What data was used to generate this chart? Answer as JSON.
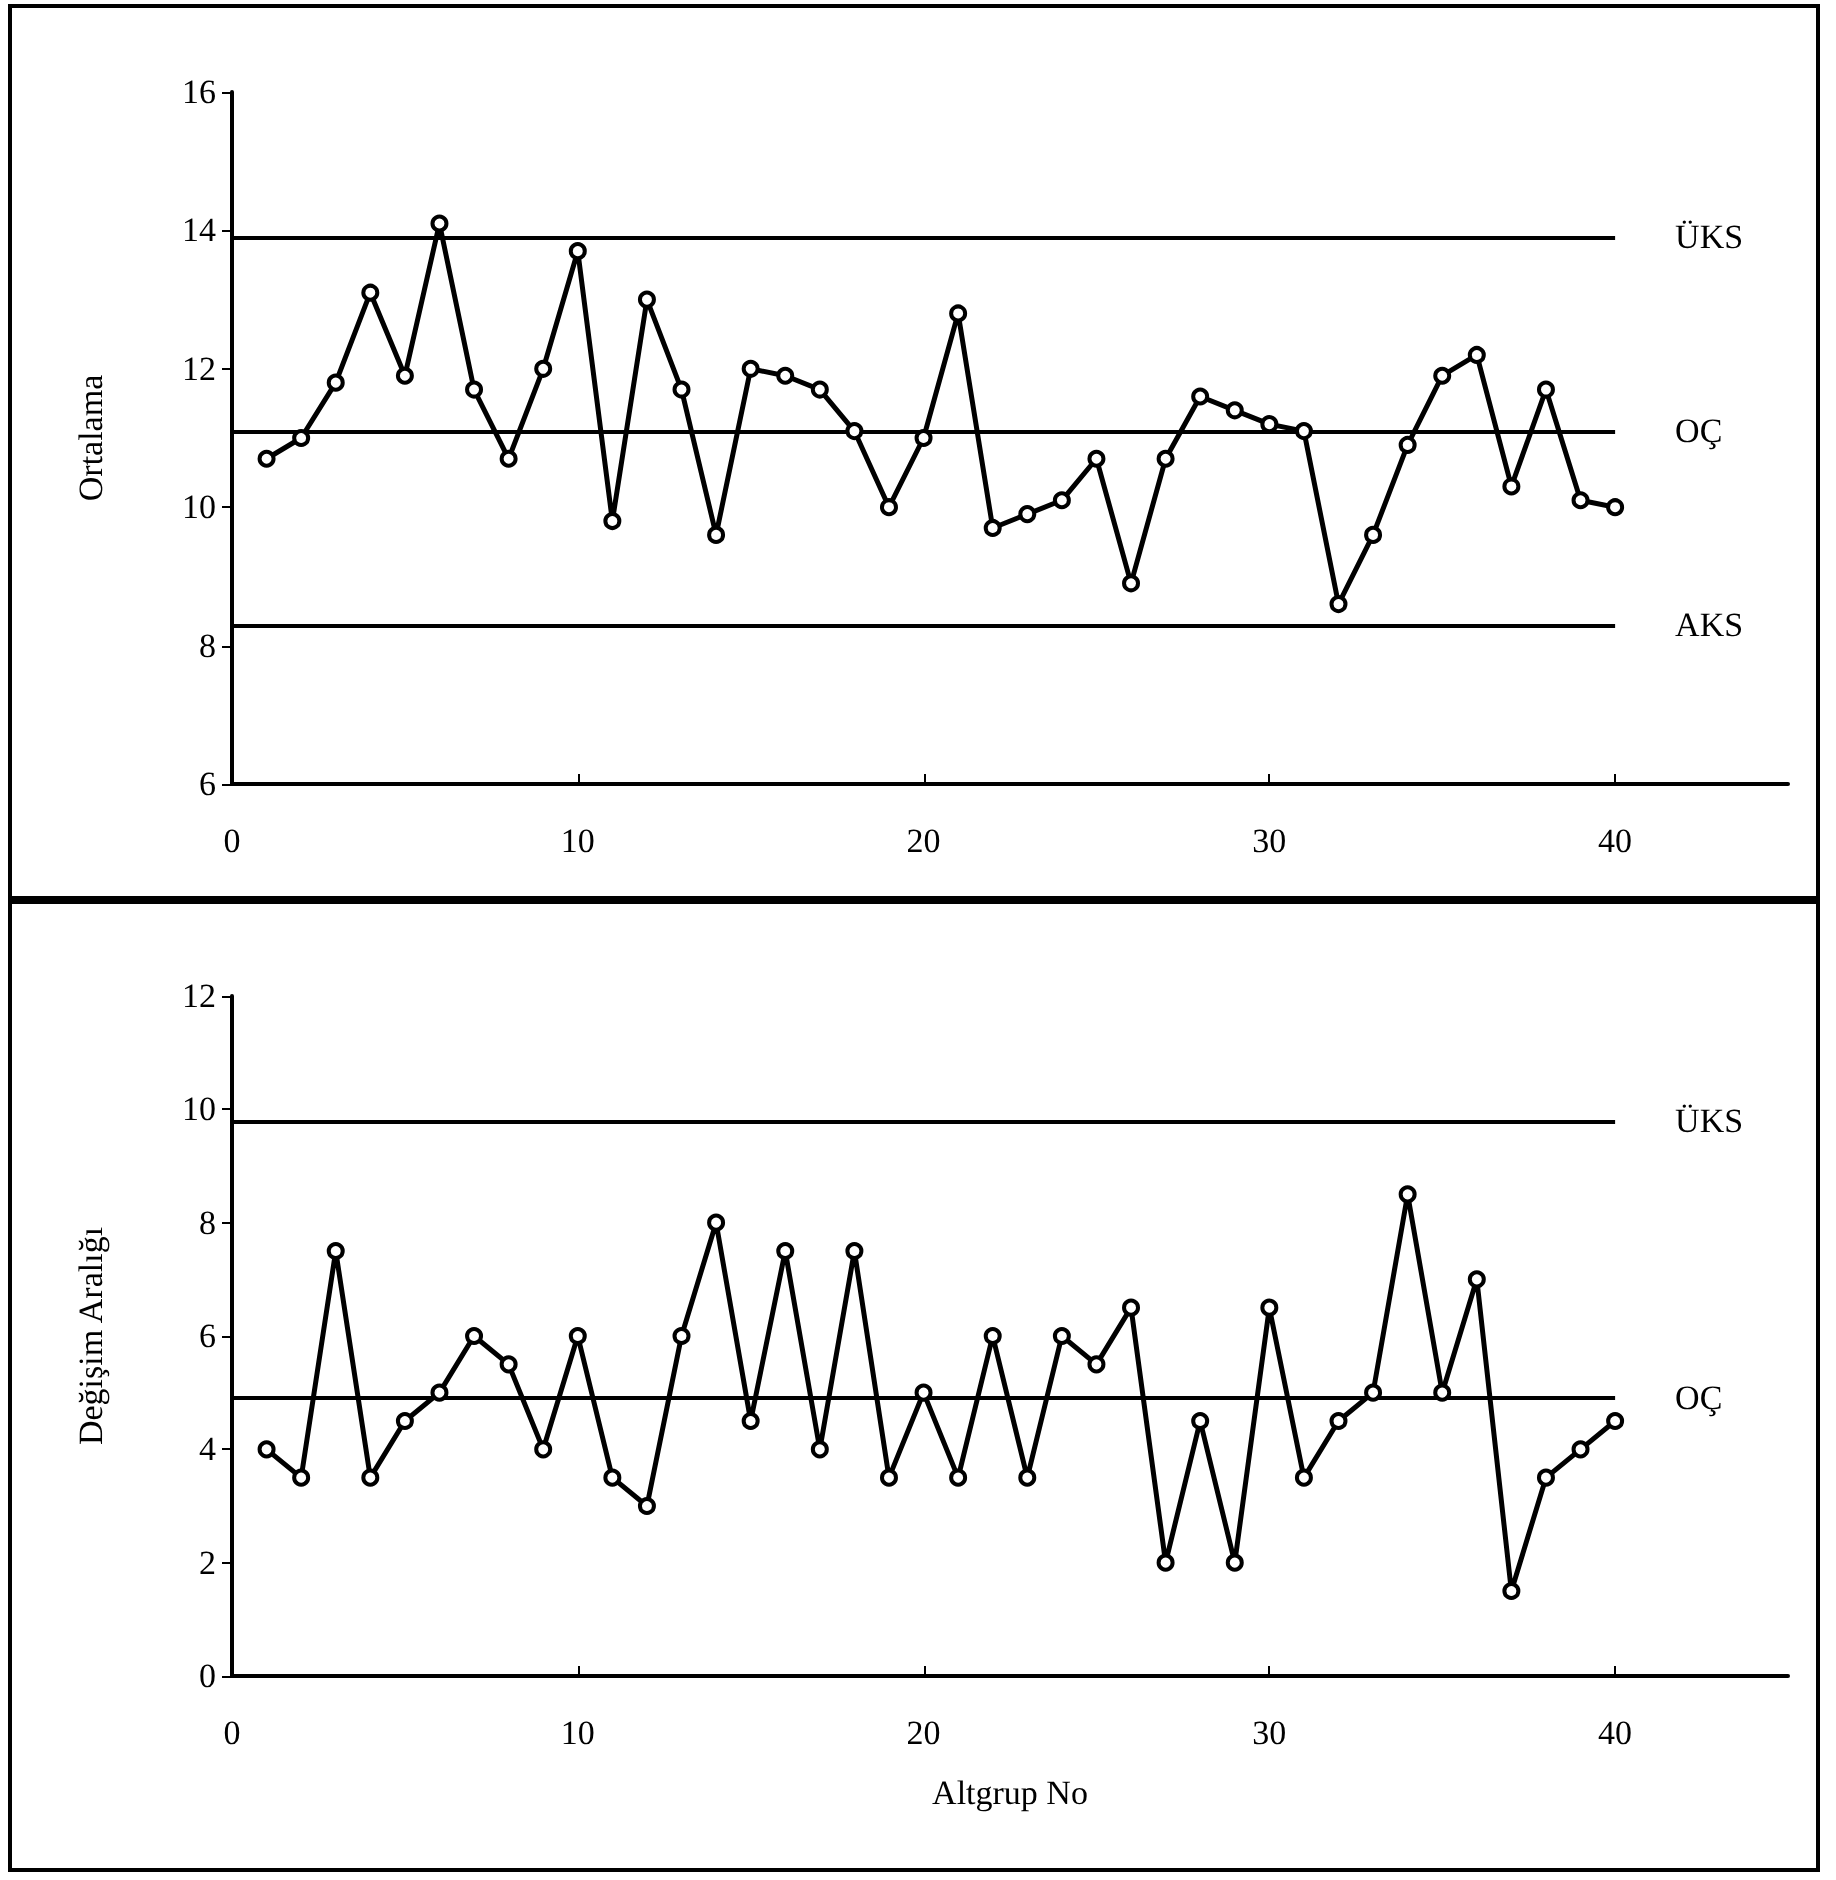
{
  "chart_data": [
    {
      "type": "line",
      "ylabel": "Ortalama",
      "x": [
        1,
        2,
        3,
        4,
        5,
        6,
        7,
        8,
        9,
        10,
        11,
        12,
        13,
        14,
        15,
        16,
        17,
        18,
        19,
        20,
        21,
        22,
        23,
        24,
        25,
        26,
        27,
        28,
        29,
        30,
        31,
        32,
        33,
        34,
        35,
        36,
        37,
        38,
        39,
        40
      ],
      "series": [
        {
          "color": "#000000",
          "values": [
            10.7,
            11.0,
            11.8,
            13.1,
            11.9,
            14.1,
            11.7,
            10.7,
            12.0,
            13.7,
            9.8,
            13.0,
            11.7,
            9.6,
            12.0,
            11.9,
            11.7,
            11.1,
            10.0,
            11.0,
            12.8,
            9.7,
            9.9,
            10.1,
            10.7,
            8.9,
            10.7,
            11.6,
            11.4,
            11.2,
            11.1,
            8.6,
            9.6,
            10.9,
            11.9,
            12.2,
            10.3,
            11.7,
            10.1,
            10.0
          ]
        }
      ],
      "xlim": [
        0,
        45
      ],
      "xticks": [
        0,
        10,
        20,
        30,
        40
      ],
      "ylim": [
        6,
        16
      ],
      "yticks": [
        6,
        8,
        10,
        12,
        14,
        16
      ],
      "ref_lines": [
        {
          "axis": "y",
          "value": 13.9,
          "label": "ÜKS"
        },
        {
          "axis": "y",
          "value": 11.1,
          "label": "OÇ"
        },
        {
          "axis": "y",
          "value": 8.3,
          "label": "AKS"
        }
      ],
      "grid": false,
      "marker": "circle",
      "line_style": "solid"
    },
    {
      "type": "line",
      "ylabel": "Değişim Aralığı",
      "xlabel": "Altgrup No",
      "x": [
        1,
        2,
        3,
        4,
        5,
        6,
        7,
        8,
        9,
        10,
        11,
        12,
        13,
        14,
        15,
        16,
        17,
        18,
        19,
        20,
        21,
        22,
        23,
        24,
        25,
        26,
        27,
        28,
        29,
        30,
        31,
        32,
        33,
        34,
        35,
        36,
        37,
        38,
        39,
        40
      ],
      "series": [
        {
          "color": "#000000",
          "values": [
            4,
            3.5,
            7.5,
            3.5,
            4.5,
            5,
            6,
            5.5,
            4,
            6,
            3.5,
            3,
            6,
            8,
            4.5,
            7.5,
            4,
            7.5,
            3.5,
            5,
            3.5,
            6,
            3.5,
            6,
            5.5,
            6.5,
            2,
            4.5,
            2,
            6.5,
            3.5,
            4.5,
            5,
            8.5,
            5,
            7,
            1.5,
            3.5,
            4,
            4.5
          ]
        }
      ],
      "xlim": [
        0,
        45
      ],
      "xticks": [
        0,
        10,
        20,
        30,
        40
      ],
      "ylim": [
        0,
        12
      ],
      "yticks": [
        0,
        2,
        4,
        6,
        8,
        10,
        12
      ],
      "ref_lines": [
        {
          "axis": "y",
          "value": 9.8,
          "label": "ÜKS"
        },
        {
          "axis": "y",
          "value": 4.9,
          "label": "OÇ"
        }
      ],
      "grid": false,
      "marker": "circle",
      "line_style": "solid"
    }
  ]
}
